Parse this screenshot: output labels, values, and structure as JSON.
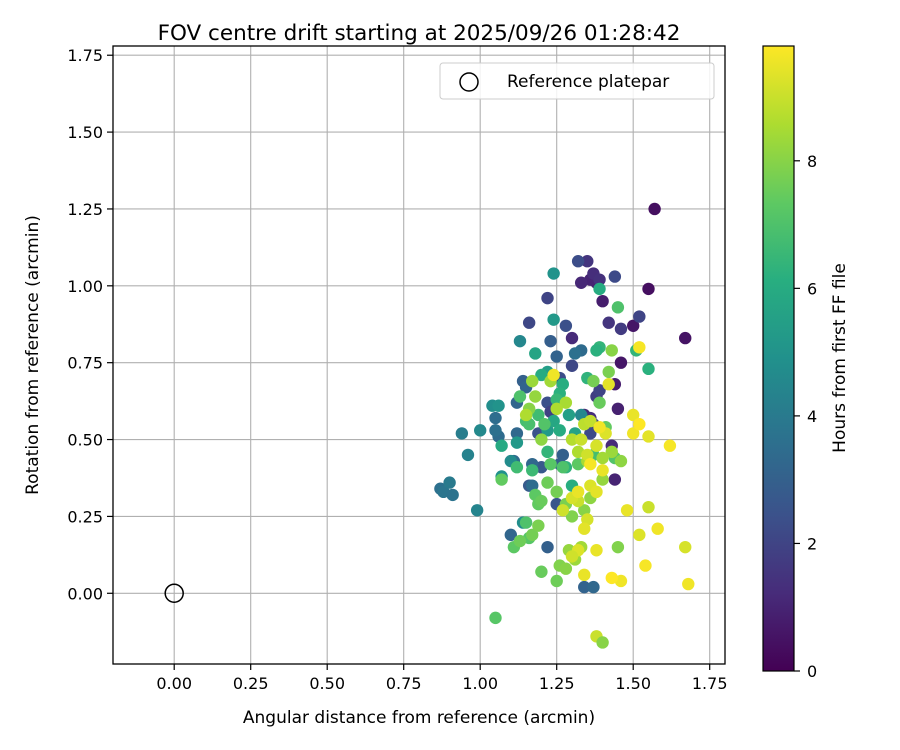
{
  "chart_data": {
    "type": "scatter",
    "title": "FOV centre drift starting at 2025/09/26 01:28:42",
    "xlabel": "Angular distance from reference (arcmin)",
    "ylabel": "Rotation from reference (arcmin)",
    "xlim": [
      -0.2,
      1.8
    ],
    "ylim": [
      -0.23,
      1.78
    ],
    "xticks": [
      0.0,
      0.25,
      0.5,
      0.75,
      1.0,
      1.25,
      1.5,
      1.75
    ],
    "xtick_labels": [
      "0.00",
      "0.25",
      "0.50",
      "0.75",
      "1.00",
      "1.25",
      "1.50",
      "1.75"
    ],
    "yticks": [
      0.0,
      0.25,
      0.5,
      0.75,
      1.0,
      1.25,
      1.5,
      1.75
    ],
    "ytick_labels": [
      "0.00",
      "0.25",
      "0.50",
      "0.75",
      "1.00",
      "1.25",
      "1.50",
      "1.75"
    ],
    "grid": true,
    "colormap": "viridis",
    "colorbar": {
      "label": "Hours from first FF file",
      "range": [
        0,
        9.8
      ],
      "ticks": [
        0,
        2,
        4,
        6,
        8
      ],
      "tick_labels": [
        "0",
        "2",
        "4",
        "6",
        "8"
      ]
    },
    "legend": {
      "position": "top-right",
      "entries": [
        {
          "label": "Reference platepar",
          "marker": "open-circle"
        }
      ]
    },
    "reference_point": {
      "x": 0.0,
      "y": 0.0
    },
    "series": [
      {
        "name": "FOV centre drift",
        "points": [
          [
            1.57,
            1.25,
            0.4
          ],
          [
            1.67,
            0.83,
            0.5
          ],
          [
            1.55,
            0.99,
            0.4
          ],
          [
            1.5,
            0.87,
            0.6
          ],
          [
            1.4,
            0.95,
            0.8
          ],
          [
            1.38,
            1.01,
            0.9
          ],
          [
            1.36,
            1.02,
            1.0
          ],
          [
            1.33,
            1.01,
            1.1
          ],
          [
            1.37,
            1.04,
            1.3
          ],
          [
            1.35,
            1.08,
            1.5
          ],
          [
            1.39,
            1.02,
            1.4
          ],
          [
            1.46,
            0.75,
            0.6
          ],
          [
            1.44,
            0.68,
            0.8
          ],
          [
            1.45,
            0.6,
            0.9
          ],
          [
            1.43,
            0.48,
            1.2
          ],
          [
            1.44,
            0.37,
            1.0
          ],
          [
            1.3,
            0.83,
            1.2
          ],
          [
            1.34,
            0.58,
            1.1
          ],
          [
            1.36,
            0.57,
            1.3
          ],
          [
            1.42,
            0.88,
            1.5
          ],
          [
            1.46,
            0.86,
            1.7
          ],
          [
            1.52,
            0.9,
            2.0
          ],
          [
            1.44,
            1.03,
            2.2
          ],
          [
            1.32,
            1.08,
            2.3
          ],
          [
            1.22,
            0.96,
            2.0
          ],
          [
            1.16,
            0.88,
            2.1
          ],
          [
            1.28,
            0.87,
            2.4
          ],
          [
            1.38,
            0.64,
            1.8
          ],
          [
            1.39,
            0.66,
            2.0
          ],
          [
            1.37,
            0.55,
            2.1
          ],
          [
            1.36,
            0.52,
            2.2
          ],
          [
            1.3,
            0.74,
            2.1
          ],
          [
            1.26,
            0.7,
            2.3
          ],
          [
            1.22,
            0.62,
            2.4
          ],
          [
            1.23,
            0.59,
            1.9
          ],
          [
            1.19,
            0.52,
            2.5
          ],
          [
            1.2,
            0.41,
            2.7
          ],
          [
            1.16,
            0.35,
            2.8
          ],
          [
            1.25,
            0.29,
            2.6
          ],
          [
            1.26,
            0.42,
            2.9
          ],
          [
            1.27,
            0.45,
            3.0
          ],
          [
            1.23,
            0.82,
            2.9
          ],
          [
            1.14,
            0.69,
            3.0
          ],
          [
            1.15,
            0.67,
            3.1
          ],
          [
            1.12,
            0.62,
            3.2
          ],
          [
            1.12,
            0.52,
            3.3
          ],
          [
            1.06,
            0.51,
            3.4
          ],
          [
            1.05,
            0.53,
            3.6
          ],
          [
            1.05,
            0.57,
            3.5
          ],
          [
            1.11,
            0.43,
            3.4
          ],
          [
            1.17,
            0.42,
            3.3
          ],
          [
            1.17,
            0.35,
            3.5
          ],
          [
            1.1,
            0.19,
            3.2
          ],
          [
            1.22,
            0.15,
            3.0
          ],
          [
            1.34,
            0.02,
            3.1
          ],
          [
            1.37,
            0.02,
            3.3
          ],
          [
            1.33,
            0.79,
            3.4
          ],
          [
            1.31,
            0.78,
            3.6
          ],
          [
            1.25,
            0.77,
            3.1
          ],
          [
            0.87,
            0.34,
            3.6
          ],
          [
            0.88,
            0.33,
            3.8
          ],
          [
            0.9,
            0.36,
            4.0
          ],
          [
            0.91,
            0.32,
            3.7
          ],
          [
            0.94,
            0.52,
            4.1
          ],
          [
            0.96,
            0.45,
            4.3
          ],
          [
            0.99,
            0.27,
            4.4
          ],
          [
            1.0,
            0.53,
            4.6
          ],
          [
            1.04,
            0.61,
            4.8
          ],
          [
            1.06,
            0.61,
            5.0
          ],
          [
            1.07,
            0.38,
            4.9
          ],
          [
            1.1,
            0.43,
            4.7
          ],
          [
            1.13,
            0.82,
            4.5
          ],
          [
            1.14,
            0.23,
            4.8
          ],
          [
            1.24,
            1.04,
            5.0
          ],
          [
            1.24,
            0.89,
            5.2
          ],
          [
            1.33,
            0.58,
            4.5
          ],
          [
            1.39,
            0.99,
            6.0
          ],
          [
            1.29,
            0.58,
            5.5
          ],
          [
            1.22,
            0.53,
            5.3
          ],
          [
            1.18,
            0.78,
            5.7
          ],
          [
            1.22,
            0.72,
            5.4
          ],
          [
            1.24,
            0.56,
            5.8
          ],
          [
            1.26,
            0.53,
            6.0
          ],
          [
            1.31,
            0.52,
            5.6
          ],
          [
            1.12,
            0.49,
            5.2
          ],
          [
            1.07,
            0.48,
            5.9
          ],
          [
            1.2,
            0.71,
            6.0
          ],
          [
            1.27,
            0.68,
            6.1
          ],
          [
            1.39,
            0.8,
            6.4
          ],
          [
            1.38,
            0.79,
            6.2
          ],
          [
            1.35,
            0.7,
            6.3
          ],
          [
            1.26,
            0.65,
            6.2
          ],
          [
            1.25,
            0.63,
            6.5
          ],
          [
            1.55,
            0.73,
            6.2
          ],
          [
            1.51,
            0.79,
            6.4
          ],
          [
            1.45,
            0.93,
            7.0
          ],
          [
            1.28,
            0.41,
            6.3
          ],
          [
            1.3,
            0.35,
            6.1
          ],
          [
            1.22,
            0.46,
            6.4
          ],
          [
            1.17,
            0.4,
            6.6
          ],
          [
            1.12,
            0.41,
            6.7
          ],
          [
            1.13,
            0.64,
            7.0
          ],
          [
            1.15,
            0.56,
            6.8
          ],
          [
            1.16,
            0.55,
            6.9
          ],
          [
            1.19,
            0.58,
            6.7
          ],
          [
            1.21,
            0.55,
            7.1
          ],
          [
            1.23,
            0.42,
            7.2
          ],
          [
            1.27,
            0.41,
            7.0
          ],
          [
            1.32,
            0.42,
            7.3
          ],
          [
            1.37,
            0.45,
            6.8
          ],
          [
            1.44,
            0.44,
            7.1
          ],
          [
            1.41,
            0.54,
            7.4
          ],
          [
            1.39,
            0.62,
            7.5
          ],
          [
            1.37,
            0.69,
            7.7
          ],
          [
            1.42,
            0.72,
            7.8
          ],
          [
            1.43,
            0.79,
            8.0
          ],
          [
            1.15,
            0.23,
            7.0
          ],
          [
            1.16,
            0.18,
            7.2
          ],
          [
            1.18,
            0.32,
            7.3
          ],
          [
            1.19,
            0.29,
            7.4
          ],
          [
            1.2,
            0.3,
            7.5
          ],
          [
            1.22,
            0.36,
            7.6
          ],
          [
            1.25,
            0.33,
            7.7
          ],
          [
            1.28,
            0.29,
            7.8
          ],
          [
            1.3,
            0.25,
            7.9
          ],
          [
            1.34,
            0.27,
            8.0
          ],
          [
            1.36,
            0.31,
            8.1
          ],
          [
            1.4,
            0.37,
            8.2
          ],
          [
            1.07,
            0.37,
            7.4
          ],
          [
            1.11,
            0.15,
            7.3
          ],
          [
            1.13,
            0.17,
            7.6
          ],
          [
            1.17,
            0.19,
            7.7
          ],
          [
            1.19,
            0.22,
            7.8
          ],
          [
            1.2,
            0.07,
            7.5
          ],
          [
            1.25,
            0.04,
            7.6
          ],
          [
            1.26,
            0.09,
            7.9
          ],
          [
            1.28,
            0.08,
            8.0
          ],
          [
            1.29,
            0.14,
            8.2
          ],
          [
            1.31,
            0.11,
            8.3
          ],
          [
            1.33,
            0.15,
            8.4
          ],
          [
            1.05,
            -0.08,
            7.2
          ],
          [
            1.45,
            0.15,
            7.9
          ],
          [
            1.46,
            0.43,
            8.1
          ],
          [
            1.43,
            0.46,
            8.3
          ],
          [
            1.4,
            0.44,
            8.4
          ],
          [
            1.35,
            0.43,
            8.5
          ],
          [
            1.32,
            0.46,
            8.6
          ],
          [
            1.3,
            0.5,
            8.7
          ],
          [
            1.28,
            0.62,
            8.5
          ],
          [
            1.25,
            0.6,
            8.6
          ],
          [
            1.23,
            0.69,
            8.4
          ],
          [
            1.17,
            0.69,
            8.3
          ],
          [
            1.18,
            0.64,
            8.2
          ],
          [
            1.2,
            0.5,
            8.1
          ],
          [
            1.16,
            0.6,
            8.0
          ],
          [
            1.15,
            0.58,
            8.6
          ],
          [
            1.34,
            0.55,
            8.8
          ],
          [
            1.36,
            0.56,
            8.9
          ],
          [
            1.33,
            0.5,
            9.0
          ],
          [
            1.35,
            0.45,
            9.1
          ],
          [
            1.38,
            0.48,
            9.2
          ],
          [
            1.41,
            0.52,
            9.3
          ],
          [
            1.32,
            0.3,
            9.0
          ],
          [
            1.35,
            0.24,
            9.2
          ],
          [
            1.36,
            0.35,
            9.3
          ],
          [
            1.38,
            0.33,
            9.4
          ],
          [
            1.4,
            0.4,
            9.5
          ],
          [
            1.42,
            0.68,
            9.4
          ],
          [
            1.24,
            0.71,
            9.6
          ],
          [
            1.52,
            0.8,
            9.7
          ],
          [
            1.5,
            0.58,
            9.5
          ],
          [
            1.5,
            0.52,
            9.6
          ],
          [
            1.55,
            0.51,
            9.4
          ],
          [
            1.62,
            0.48,
            9.7
          ],
          [
            1.52,
            0.55,
            9.8
          ],
          [
            1.48,
            0.27,
            9.5
          ],
          [
            1.55,
            0.28,
            9.0
          ],
          [
            1.58,
            0.21,
            9.6
          ],
          [
            1.52,
            0.19,
            9.3
          ],
          [
            1.54,
            0.09,
            9.7
          ],
          [
            1.46,
            0.04,
            9.6
          ],
          [
            1.43,
            0.05,
            9.8
          ],
          [
            1.38,
            0.14,
            9.5
          ],
          [
            1.34,
            0.21,
            9.4
          ],
          [
            1.32,
            0.14,
            9.3
          ],
          [
            1.3,
            0.12,
            9.1
          ],
          [
            1.34,
            0.06,
            9.5
          ],
          [
            1.38,
            -0.14,
            9.0
          ],
          [
            1.4,
            -0.16,
            8.0
          ],
          [
            1.67,
            0.15,
            9.2
          ],
          [
            1.68,
            0.03,
            9.6
          ],
          [
            1.3,
            0.31,
            9.2
          ],
          [
            1.32,
            0.33,
            9.5
          ],
          [
            1.27,
            0.27,
            9.1
          ],
          [
            1.36,
            0.42,
            9.7
          ],
          [
            1.39,
            0.54,
            9.6
          ]
        ]
      }
    ]
  }
}
